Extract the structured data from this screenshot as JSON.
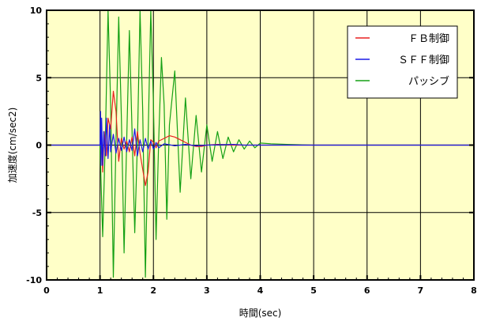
{
  "chart_data": {
    "type": "line",
    "title": "",
    "xlabel": "時間(sec)",
    "ylabel": "加速度(cm/sec2)",
    "xlim": [
      0,
      8
    ],
    "ylim": [
      -10,
      10
    ],
    "x_ticks": [
      "0",
      "1",
      "2",
      "3",
      "4",
      "5",
      "6",
      "7",
      "8"
    ],
    "y_ticks": [
      "10",
      "5",
      "0",
      "-5",
      "-10"
    ],
    "grid": true,
    "background_color": "#ffffc8",
    "legend_position": "top-right",
    "series": [
      {
        "name": "ＦＢ制御",
        "color": "#e82020",
        "x": [
          0,
          1.0,
          1.02,
          1.05,
          1.08,
          1.12,
          1.15,
          1.2,
          1.25,
          1.3,
          1.35,
          1.4,
          1.45,
          1.5,
          1.55,
          1.6,
          1.65,
          1.7,
          1.75,
          1.8,
          1.85,
          1.9,
          1.95,
          2.0,
          2.05,
          2.1,
          2.2,
          2.3,
          2.4,
          2.5,
          2.6,
          2.7,
          2.8,
          2.9,
          3.0,
          3.2,
          3.5,
          4.0,
          8.0
        ],
        "y": [
          0,
          0,
          1.2,
          -2.0,
          1.0,
          -0.8,
          2.0,
          1.2,
          4.0,
          2.5,
          -1.2,
          0.5,
          -0.3,
          0.3,
          -0.5,
          0.6,
          -0.8,
          1.0,
          -0.6,
          -1.8,
          -3.0,
          -2.0,
          0.4,
          0.2,
          -0.2,
          0.3,
          0.5,
          0.7,
          0.6,
          0.4,
          0.2,
          0.0,
          -0.1,
          -0.1,
          0.0,
          0.05,
          0.0,
          0.0,
          0.0
        ]
      },
      {
        "name": "ＳＦＦ制御",
        "color": "#1a1ae6",
        "x": [
          0,
          1.0,
          1.01,
          1.02,
          1.03,
          1.05,
          1.07,
          1.1,
          1.12,
          1.15,
          1.18,
          1.2,
          1.25,
          1.3,
          1.35,
          1.4,
          1.45,
          1.5,
          1.55,
          1.6,
          1.65,
          1.7,
          1.75,
          1.8,
          1.85,
          1.9,
          1.95,
          2.0,
          2.05,
          2.1,
          2.2,
          2.4,
          2.6,
          2.8,
          3.0,
          3.5,
          3.7,
          4.0,
          8.0
        ],
        "y": [
          0,
          0,
          2.5,
          -1.5,
          2.0,
          -1.5,
          1.0,
          -0.8,
          2.0,
          -1.0,
          1.5,
          -0.5,
          0.8,
          -0.6,
          0.5,
          -0.4,
          0.6,
          -0.5,
          0.4,
          -0.4,
          1.2,
          -0.8,
          0.4,
          -0.5,
          0.5,
          -0.3,
          0.3,
          -0.3,
          0.2,
          -0.2,
          0.1,
          -0.05,
          0.05,
          -0.05,
          0.0,
          0.05,
          0.0,
          0.0,
          0.0
        ]
      },
      {
        "name": "パッシブ",
        "color": "#15a015",
        "x": [
          0,
          1.0,
          1.05,
          1.1,
          1.15,
          1.2,
          1.25,
          1.3,
          1.35,
          1.4,
          1.45,
          1.5,
          1.55,
          1.6,
          1.65,
          1.7,
          1.75,
          1.8,
          1.85,
          1.9,
          1.95,
          2.0,
          2.05,
          2.1,
          2.15,
          2.2,
          2.25,
          2.3,
          2.4,
          2.5,
          2.6,
          2.7,
          2.8,
          2.9,
          3.0,
          3.1,
          3.2,
          3.3,
          3.4,
          3.5,
          3.6,
          3.7,
          3.8,
          3.9,
          4.0,
          4.2,
          4.5,
          5.0,
          8.0
        ],
        "y": [
          0,
          0,
          -6.8,
          0.5,
          10.0,
          3.0,
          -9.8,
          0.5,
          9.5,
          2.0,
          -8.0,
          0.3,
          8.5,
          1.0,
          -6.5,
          0.2,
          10.0,
          2.5,
          -9.8,
          0.5,
          10.0,
          3.0,
          -7.0,
          0.5,
          6.5,
          3.0,
          -5.5,
          1.5,
          5.5,
          -3.5,
          3.5,
          -2.5,
          2.2,
          -2.0,
          1.5,
          -1.2,
          1.0,
          -1.0,
          0.6,
          -0.5,
          0.4,
          -0.3,
          0.3,
          -0.2,
          0.15,
          0.1,
          0.05,
          0.0,
          0.0
        ]
      }
    ]
  }
}
